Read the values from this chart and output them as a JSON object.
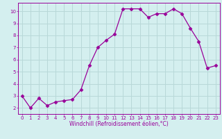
{
  "x": [
    0,
    1,
    2,
    3,
    4,
    5,
    6,
    7,
    8,
    9,
    10,
    11,
    12,
    13,
    14,
    15,
    16,
    17,
    18,
    19,
    20,
    21,
    22,
    23
  ],
  "y": [
    3.0,
    2.0,
    2.8,
    2.2,
    2.5,
    2.6,
    2.7,
    3.5,
    5.5,
    7.0,
    7.6,
    8.1,
    10.2,
    10.2,
    10.2,
    9.5,
    9.8,
    9.8,
    10.2,
    9.8,
    8.6,
    7.5,
    5.3,
    5.5
  ],
  "line_color": "#990099",
  "marker": "D",
  "marker_size": 2.5,
  "bg_color": "#d4efef",
  "grid_color": "#b8d8d8",
  "xlabel": "Windchill (Refroidissement éolien,°C)",
  "xlabel_color": "#990099",
  "tick_color": "#990099",
  "label_color": "#990099",
  "xlim": [
    -0.5,
    23.5
  ],
  "ylim": [
    1.5,
    10.7
  ],
  "yticks": [
    2,
    3,
    4,
    5,
    6,
    7,
    8,
    9,
    10
  ],
  "xticks": [
    0,
    1,
    2,
    3,
    4,
    5,
    6,
    7,
    8,
    9,
    10,
    11,
    12,
    13,
    14,
    15,
    16,
    17,
    18,
    19,
    20,
    21,
    22,
    23
  ],
  "tick_fontsize": 5.0,
  "xlabel_fontsize": 5.5
}
